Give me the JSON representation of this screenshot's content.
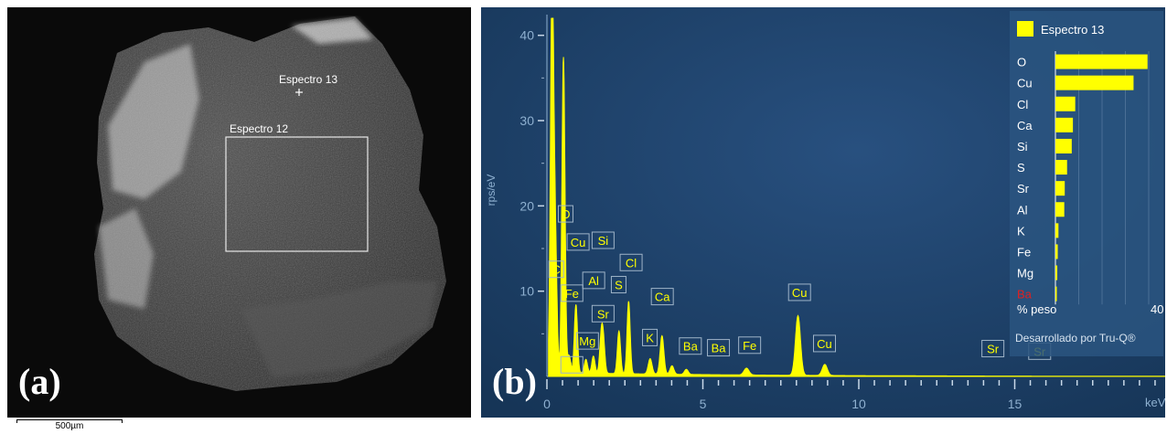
{
  "panel_a": {
    "letter": "(a)",
    "marker_label": "Espectro 13",
    "box_label": "Espectro 12",
    "scale_label": "500µm"
  },
  "panel_b": {
    "letter": "(b)",
    "legend": {
      "series_name": "Espectro 13",
      "unit_label": "% peso",
      "axis_max_label": "40",
      "credit": "Desarrollado por Tru-Q®"
    }
  },
  "chart_data": [
    {
      "type": "line",
      "title": "",
      "xlabel": "keV",
      "ylabel": "rps/eV",
      "xlim": [
        0,
        20
      ],
      "ylim": [
        0,
        42
      ],
      "x_ticks": [
        0,
        5,
        10,
        15
      ],
      "y_ticks": [
        10,
        20,
        30,
        40
      ],
      "grid": false,
      "series": [
        {
          "name": "Espectro 13",
          "peaks": [
            {
              "x": 0.16,
              "y": 42.0,
              "w": 0.05
            },
            {
              "x": 0.22,
              "y": 9.0,
              "w": 0.05
            },
            {
              "x": 0.28,
              "y": 11.5,
              "w": 0.05
            },
            {
              "x": 0.53,
              "y": 37.0,
              "w": 0.05
            },
            {
              "x": 0.71,
              "y": 2.0,
              "w": 0.05
            },
            {
              "x": 0.93,
              "y": 8.0,
              "w": 0.05
            },
            {
              "x": 1.25,
              "y": 1.6,
              "w": 0.05
            },
            {
              "x": 1.49,
              "y": 2.0,
              "w": 0.05
            },
            {
              "x": 1.74,
              "y": 4.0,
              "w": 0.05
            },
            {
              "x": 1.81,
              "y": 3.5,
              "w": 0.05
            },
            {
              "x": 2.31,
              "y": 5.0,
              "w": 0.05
            },
            {
              "x": 2.62,
              "y": 8.5,
              "w": 0.05
            },
            {
              "x": 3.31,
              "y": 1.8,
              "w": 0.06
            },
            {
              "x": 3.69,
              "y": 4.5,
              "w": 0.06
            },
            {
              "x": 4.01,
              "y": 1.0,
              "w": 0.06
            },
            {
              "x": 4.47,
              "y": 0.6,
              "w": 0.06
            },
            {
              "x": 6.4,
              "y": 0.8,
              "w": 0.08
            },
            {
              "x": 8.05,
              "y": 7.0,
              "w": 0.08
            },
            {
              "x": 8.91,
              "y": 1.3,
              "w": 0.08
            }
          ],
          "baseline": 0.5
        }
      ],
      "annotations": [
        {
          "text": "O",
          "x": 0.6,
          "y": 18.1
        },
        {
          "text": "Cu",
          "x": 1.0,
          "y": 14.8
        },
        {
          "text": "Si",
          "x": 1.8,
          "y": 15.0
        },
        {
          "text": "C",
          "x": 0.3,
          "y": 11.6
        },
        {
          "text": "Fe",
          "x": 0.8,
          "y": 8.8
        },
        {
          "text": "Al",
          "x": 1.5,
          "y": 10.3
        },
        {
          "text": "S",
          "x": 2.3,
          "y": 9.8
        },
        {
          "text": "Cl",
          "x": 2.7,
          "y": 12.4
        },
        {
          "text": "Sr",
          "x": 1.8,
          "y": 6.4
        },
        {
          "text": "Ca",
          "x": 3.7,
          "y": 8.4
        },
        {
          "text": "Mg",
          "x": 1.3,
          "y": 3.2
        },
        {
          "text": "K",
          "x": 3.3,
          "y": 3.6
        },
        {
          "text": "Ba",
          "x": 4.6,
          "y": 2.6
        },
        {
          "text": "Ba",
          "x": 0.8,
          "y": 0.4
        },
        {
          "text": "Ba",
          "x": 5.5,
          "y": 2.4
        },
        {
          "text": "Fe",
          "x": 6.5,
          "y": 2.7
        },
        {
          "text": "Cu",
          "x": 8.1,
          "y": 8.9
        },
        {
          "text": "Cu",
          "x": 8.9,
          "y": 2.9
        },
        {
          "text": "Sr",
          "x": 14.3,
          "y": 2.3
        },
        {
          "text": "Sr",
          "x": 15.8,
          "y": 2.0
        }
      ]
    },
    {
      "type": "bar",
      "title": "",
      "xlabel": "% peso",
      "ylabel": "",
      "xlim": [
        0,
        40
      ],
      "categories": [
        "O",
        "Cu",
        "Cl",
        "Ca",
        "Si",
        "S",
        "Sr",
        "Al",
        "K",
        "Fe",
        "Mg",
        "Ba"
      ],
      "values": [
        39.5,
        33.5,
        8.5,
        7.5,
        7.0,
        5.0,
        4.0,
        3.8,
        1.3,
        1.0,
        0.8,
        0.4
      ],
      "series_name": "Espectro 13",
      "colors": {
        "bar": "#ffff00",
        "highlight_label": "#e02020"
      }
    }
  ],
  "colors": {
    "spectrum_bg_center": "#28507f",
    "spectrum_bg_edge": "#163557",
    "spectrum": "#ffff00",
    "axis_text": "#8eb0d0",
    "legend_bg": "#2a5580"
  }
}
